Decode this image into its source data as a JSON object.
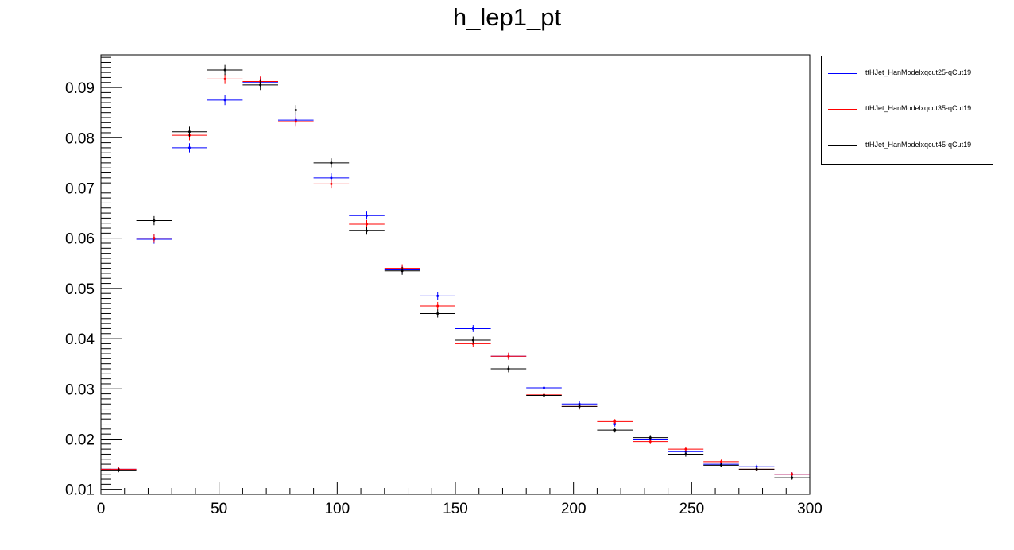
{
  "chart_data": {
    "type": "scatter",
    "title": "h_lep1_pt",
    "xlabel": "",
    "ylabel": "",
    "xlim": [
      0,
      300
    ],
    "ylim": [
      0.009,
      0.0965
    ],
    "x_ticks": [
      "0",
      "50",
      "100",
      "150",
      "200",
      "250",
      "300"
    ],
    "y_ticks": [
      "0.01",
      "0.02",
      "0.03",
      "0.04",
      "0.05",
      "0.06",
      "0.07",
      "0.08",
      "0.09"
    ],
    "bin_edges": [
      0,
      15,
      30,
      45,
      60,
      75,
      90,
      105,
      120,
      135,
      150,
      165,
      180,
      195,
      210,
      225,
      240,
      255,
      270,
      285,
      300
    ],
    "legend_position": "top-right, outside plot",
    "grid": false,
    "series": [
      {
        "name": "ttHJet_HanModelxqcut25-qCut19",
        "color": "#0000ff",
        "values": [
          0.014,
          0.0598,
          0.078,
          0.0875,
          0.091,
          0.0835,
          0.072,
          0.0645,
          0.0537,
          0.0485,
          0.042,
          0.0365,
          0.0302,
          0.027,
          0.023,
          0.02,
          0.0175,
          0.015,
          0.0145,
          0.013
        ],
        "errors": [
          0.0004,
          0.0009,
          0.0009,
          0.001,
          0.001,
          0.001,
          0.0009,
          0.0008,
          0.0008,
          0.0008,
          0.0007,
          0.0007,
          0.0006,
          0.0006,
          0.0005,
          0.0005,
          0.0005,
          0.0004,
          0.0004,
          0.0004
        ]
      },
      {
        "name": "ttHJet_HanModelxqcut35-qCut19",
        "color": "#ff0000",
        "values": [
          0.014,
          0.06,
          0.0805,
          0.0917,
          0.0912,
          0.0832,
          0.0708,
          0.0628,
          0.054,
          0.0465,
          0.039,
          0.0365,
          0.0288,
          0.0265,
          0.0235,
          0.0195,
          0.018,
          0.0155,
          0.014,
          0.013
        ],
        "errors": [
          0.0004,
          0.0009,
          0.001,
          0.001,
          0.001,
          0.001,
          0.0009,
          0.0008,
          0.0008,
          0.0008,
          0.0007,
          0.0007,
          0.0006,
          0.0006,
          0.0005,
          0.0005,
          0.0005,
          0.0004,
          0.0004,
          0.0004
        ]
      },
      {
        "name": "ttHJet_HanModelxqcut45-qCut19",
        "color": "#000000",
        "values": [
          0.0138,
          0.0635,
          0.0812,
          0.0935,
          0.0905,
          0.0855,
          0.075,
          0.0615,
          0.0535,
          0.045,
          0.0397,
          0.034,
          0.0287,
          0.0265,
          0.0218,
          0.0203,
          0.017,
          0.0148,
          0.014,
          0.0123
        ],
        "errors": [
          0.0004,
          0.0009,
          0.001,
          0.001,
          0.001,
          0.001,
          0.0009,
          0.0008,
          0.0008,
          0.0008,
          0.0007,
          0.0007,
          0.0006,
          0.0006,
          0.0005,
          0.0005,
          0.0005,
          0.0004,
          0.0004,
          0.0004
        ]
      }
    ]
  }
}
